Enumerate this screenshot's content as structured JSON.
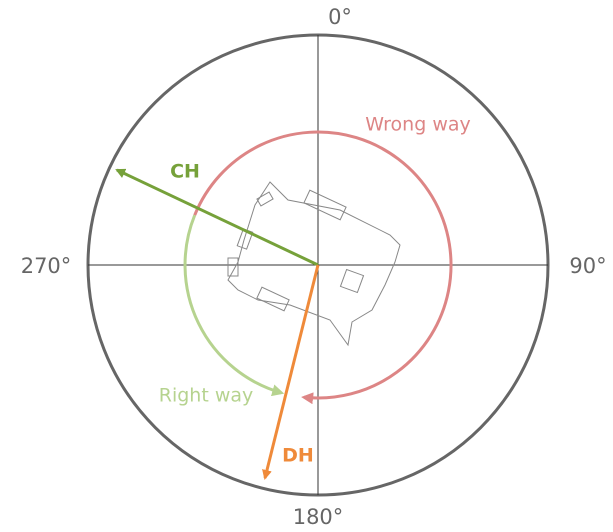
{
  "axes": {
    "top": "0°",
    "right": "90°",
    "bottom": "180°",
    "left": "270°"
  },
  "arcs": {
    "wrong": "Wrong way",
    "right": "Right way"
  },
  "vectors": {
    "ch": "CH",
    "dh": "DH"
  }
}
